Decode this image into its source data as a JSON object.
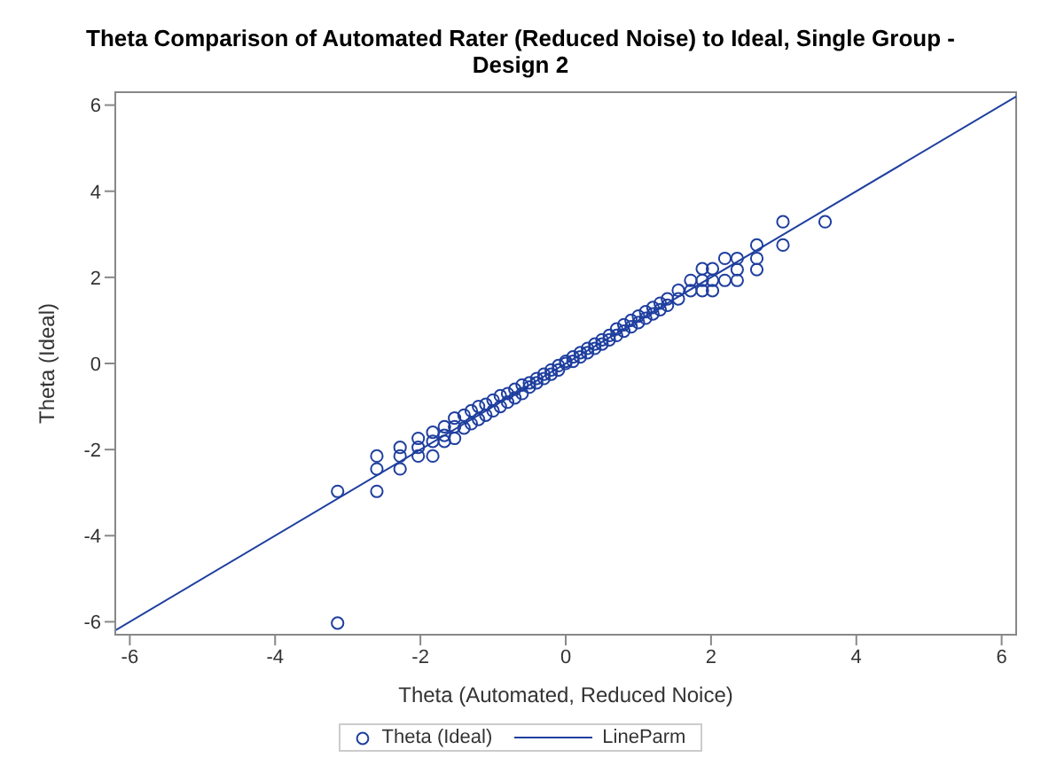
{
  "chart_data": {
    "type": "scatter",
    "title": "Theta Comparison of Automated Rater (Reduced Noise) to Ideal, Single Group - Design 2",
    "xlabel": "Theta (Automated, Reduced Noice)",
    "ylabel": "Theta (Ideal)",
    "xlim": [
      -6.2,
      6.2
    ],
    "ylim": [
      -6.3,
      6.3
    ],
    "xticks": [
      -6,
      -4,
      -2,
      0,
      2,
      4,
      6
    ],
    "yticks": [
      -6,
      -4,
      -2,
      0,
      2,
      4,
      6
    ],
    "legend": "bottom",
    "series": [
      {
        "name": "Theta (Ideal)",
        "marker": "circle",
        "color": "#1f3f9f",
        "x": [
          -3.14,
          -3.14,
          -2.6,
          -2.6,
          -2.6,
          -2.28,
          -2.28,
          -2.28,
          -2.03,
          -2.03,
          -2.03,
          -1.83,
          -1.83,
          -1.83,
          -1.67,
          -1.67,
          -1.67,
          -1.53,
          -1.53,
          -1.53,
          -1.4,
          -1.4,
          -1.3,
          -1.3,
          -1.2,
          -1.2,
          -1.1,
          -1.1,
          -1.0,
          -1.0,
          -0.9,
          -0.9,
          -0.8,
          -0.8,
          -0.7,
          -0.7,
          -0.6,
          -0.6,
          -0.5,
          -0.5,
          -0.4,
          -0.4,
          -0.3,
          -0.3,
          -0.2,
          -0.2,
          -0.1,
          -0.1,
          0.0,
          0.0,
          0.1,
          0.1,
          0.2,
          0.2,
          0.3,
          0.3,
          0.4,
          0.4,
          0.5,
          0.5,
          0.6,
          0.6,
          0.7,
          0.7,
          0.8,
          0.8,
          0.9,
          0.9,
          1.0,
          1.0,
          1.1,
          1.1,
          1.2,
          1.2,
          1.3,
          1.3,
          1.4,
          1.4,
          1.55,
          1.55,
          1.72,
          1.72,
          1.88,
          1.88,
          1.88,
          2.02,
          2.02,
          2.02,
          2.19,
          2.19,
          2.36,
          2.36,
          2.36,
          2.63,
          2.63,
          2.63,
          2.99,
          2.99,
          3.57
        ],
        "values": [
          -2.97,
          -6.03,
          -2.15,
          -2.45,
          -2.97,
          -1.95,
          -2.15,
          -2.45,
          -1.74,
          -1.95,
          -2.15,
          -1.6,
          -1.81,
          -2.15,
          -1.47,
          -1.67,
          -1.81,
          -1.27,
          -1.47,
          -1.74,
          -1.2,
          -1.5,
          -1.1,
          -1.4,
          -1.0,
          -1.3,
          -0.95,
          -1.2,
          -0.85,
          -1.1,
          -0.75,
          -1.0,
          -0.7,
          -0.9,
          -0.6,
          -0.8,
          -0.5,
          -0.7,
          -0.45,
          -0.55,
          -0.35,
          -0.45,
          -0.25,
          -0.35,
          -0.15,
          -0.25,
          -0.05,
          -0.15,
          0.0,
          0.05,
          0.05,
          0.15,
          0.15,
          0.25,
          0.25,
          0.35,
          0.35,
          0.45,
          0.45,
          0.55,
          0.55,
          0.65,
          0.65,
          0.8,
          0.75,
          0.9,
          0.85,
          1.0,
          0.95,
          1.1,
          1.05,
          1.2,
          1.15,
          1.3,
          1.25,
          1.4,
          1.35,
          1.5,
          1.5,
          1.7,
          1.69,
          1.93,
          1.69,
          1.93,
          2.2,
          1.69,
          1.93,
          2.2,
          1.93,
          2.44,
          1.93,
          2.18,
          2.44,
          2.18,
          2.44,
          2.75,
          2.75,
          3.29,
          3.29
        ]
      },
      {
        "name": "LineParm",
        "type": "line",
        "marker": "none",
        "color": "#1f3f9f",
        "x": [
          -6.2,
          6.2
        ],
        "values": [
          -6.2,
          6.2
        ]
      }
    ]
  }
}
